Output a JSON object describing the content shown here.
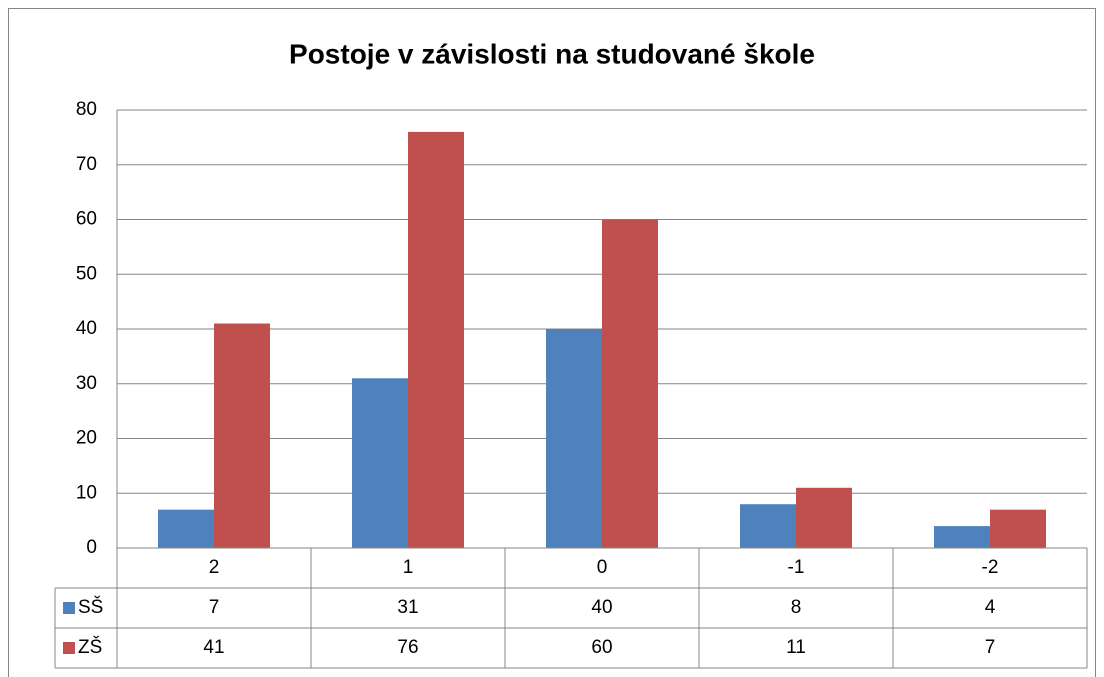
{
  "chart_data": {
    "type": "bar",
    "title": "Postoje v závislosti na studované škole",
    "categories": [
      "2",
      "1",
      "0",
      "-1",
      "-2"
    ],
    "series": [
      {
        "name": "SŠ",
        "color": "#4f81bd",
        "values": [
          7,
          31,
          40,
          8,
          4
        ]
      },
      {
        "name": "ZŠ",
        "color": "#c0504d",
        "values": [
          41,
          76,
          60,
          11,
          7
        ]
      }
    ],
    "ylim": [
      0,
      80
    ],
    "yticks": [
      0,
      10,
      20,
      30,
      40,
      50,
      60,
      70,
      80
    ],
    "grid": true,
    "data_table": true
  }
}
